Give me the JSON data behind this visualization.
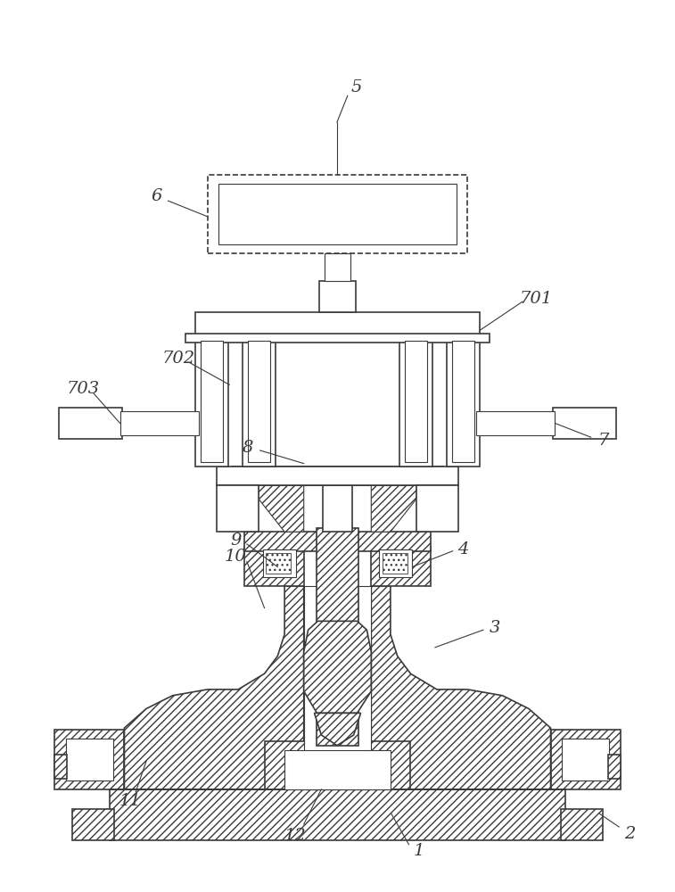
{
  "background_color": "#ffffff",
  "line_color": "#3a3a3a",
  "label_color": "#3a3a3a",
  "fig_width": 7.57,
  "fig_height": 10.0
}
